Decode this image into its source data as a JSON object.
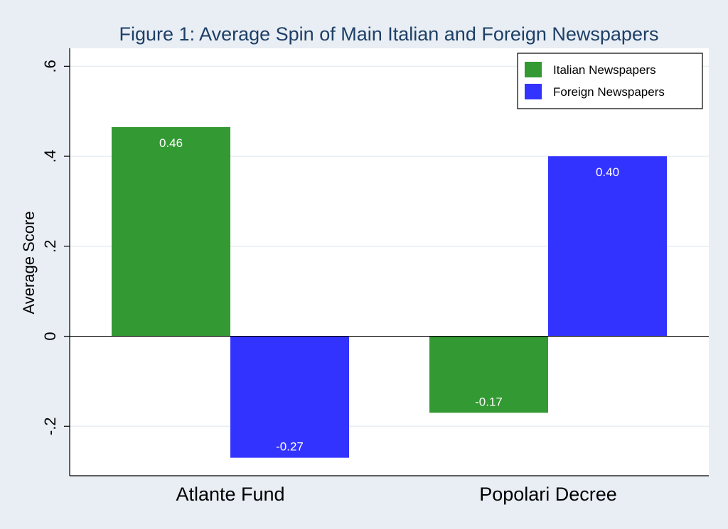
{
  "chart_data": {
    "type": "bar",
    "title": "Figure 1:  Average Spin of Main Italian and Foreign Newspapers",
    "xlabel": "",
    "ylabel": "Average Score",
    "categories": [
      "Atlante Fund",
      "Popolari Decree"
    ],
    "series": [
      {
        "name": "Italian Newspapers",
        "color": "#339933",
        "values": [
          0.465,
          -0.17
        ],
        "labels": [
          "0.46",
          "-0.17"
        ]
      },
      {
        "name": "Foreign Newspapers",
        "color": "#3333ff",
        "values": [
          -0.27,
          0.4
        ],
        "labels": [
          "-0.27",
          "0.40"
        ]
      }
    ],
    "ylim": [
      -0.31,
      0.64
    ],
    "yticks": [
      -0.2,
      0,
      0.2,
      0.4,
      0.6
    ],
    "ytick_labels": [
      "-.2",
      "0",
      ".2",
      ".4",
      ".6"
    ],
    "grid": true,
    "legend_position": "top-right",
    "colors": {
      "background": "#e8eef4",
      "plot_background": "#ffffff",
      "grid": "#e6eef4",
      "title": "#1e3f66"
    }
  }
}
